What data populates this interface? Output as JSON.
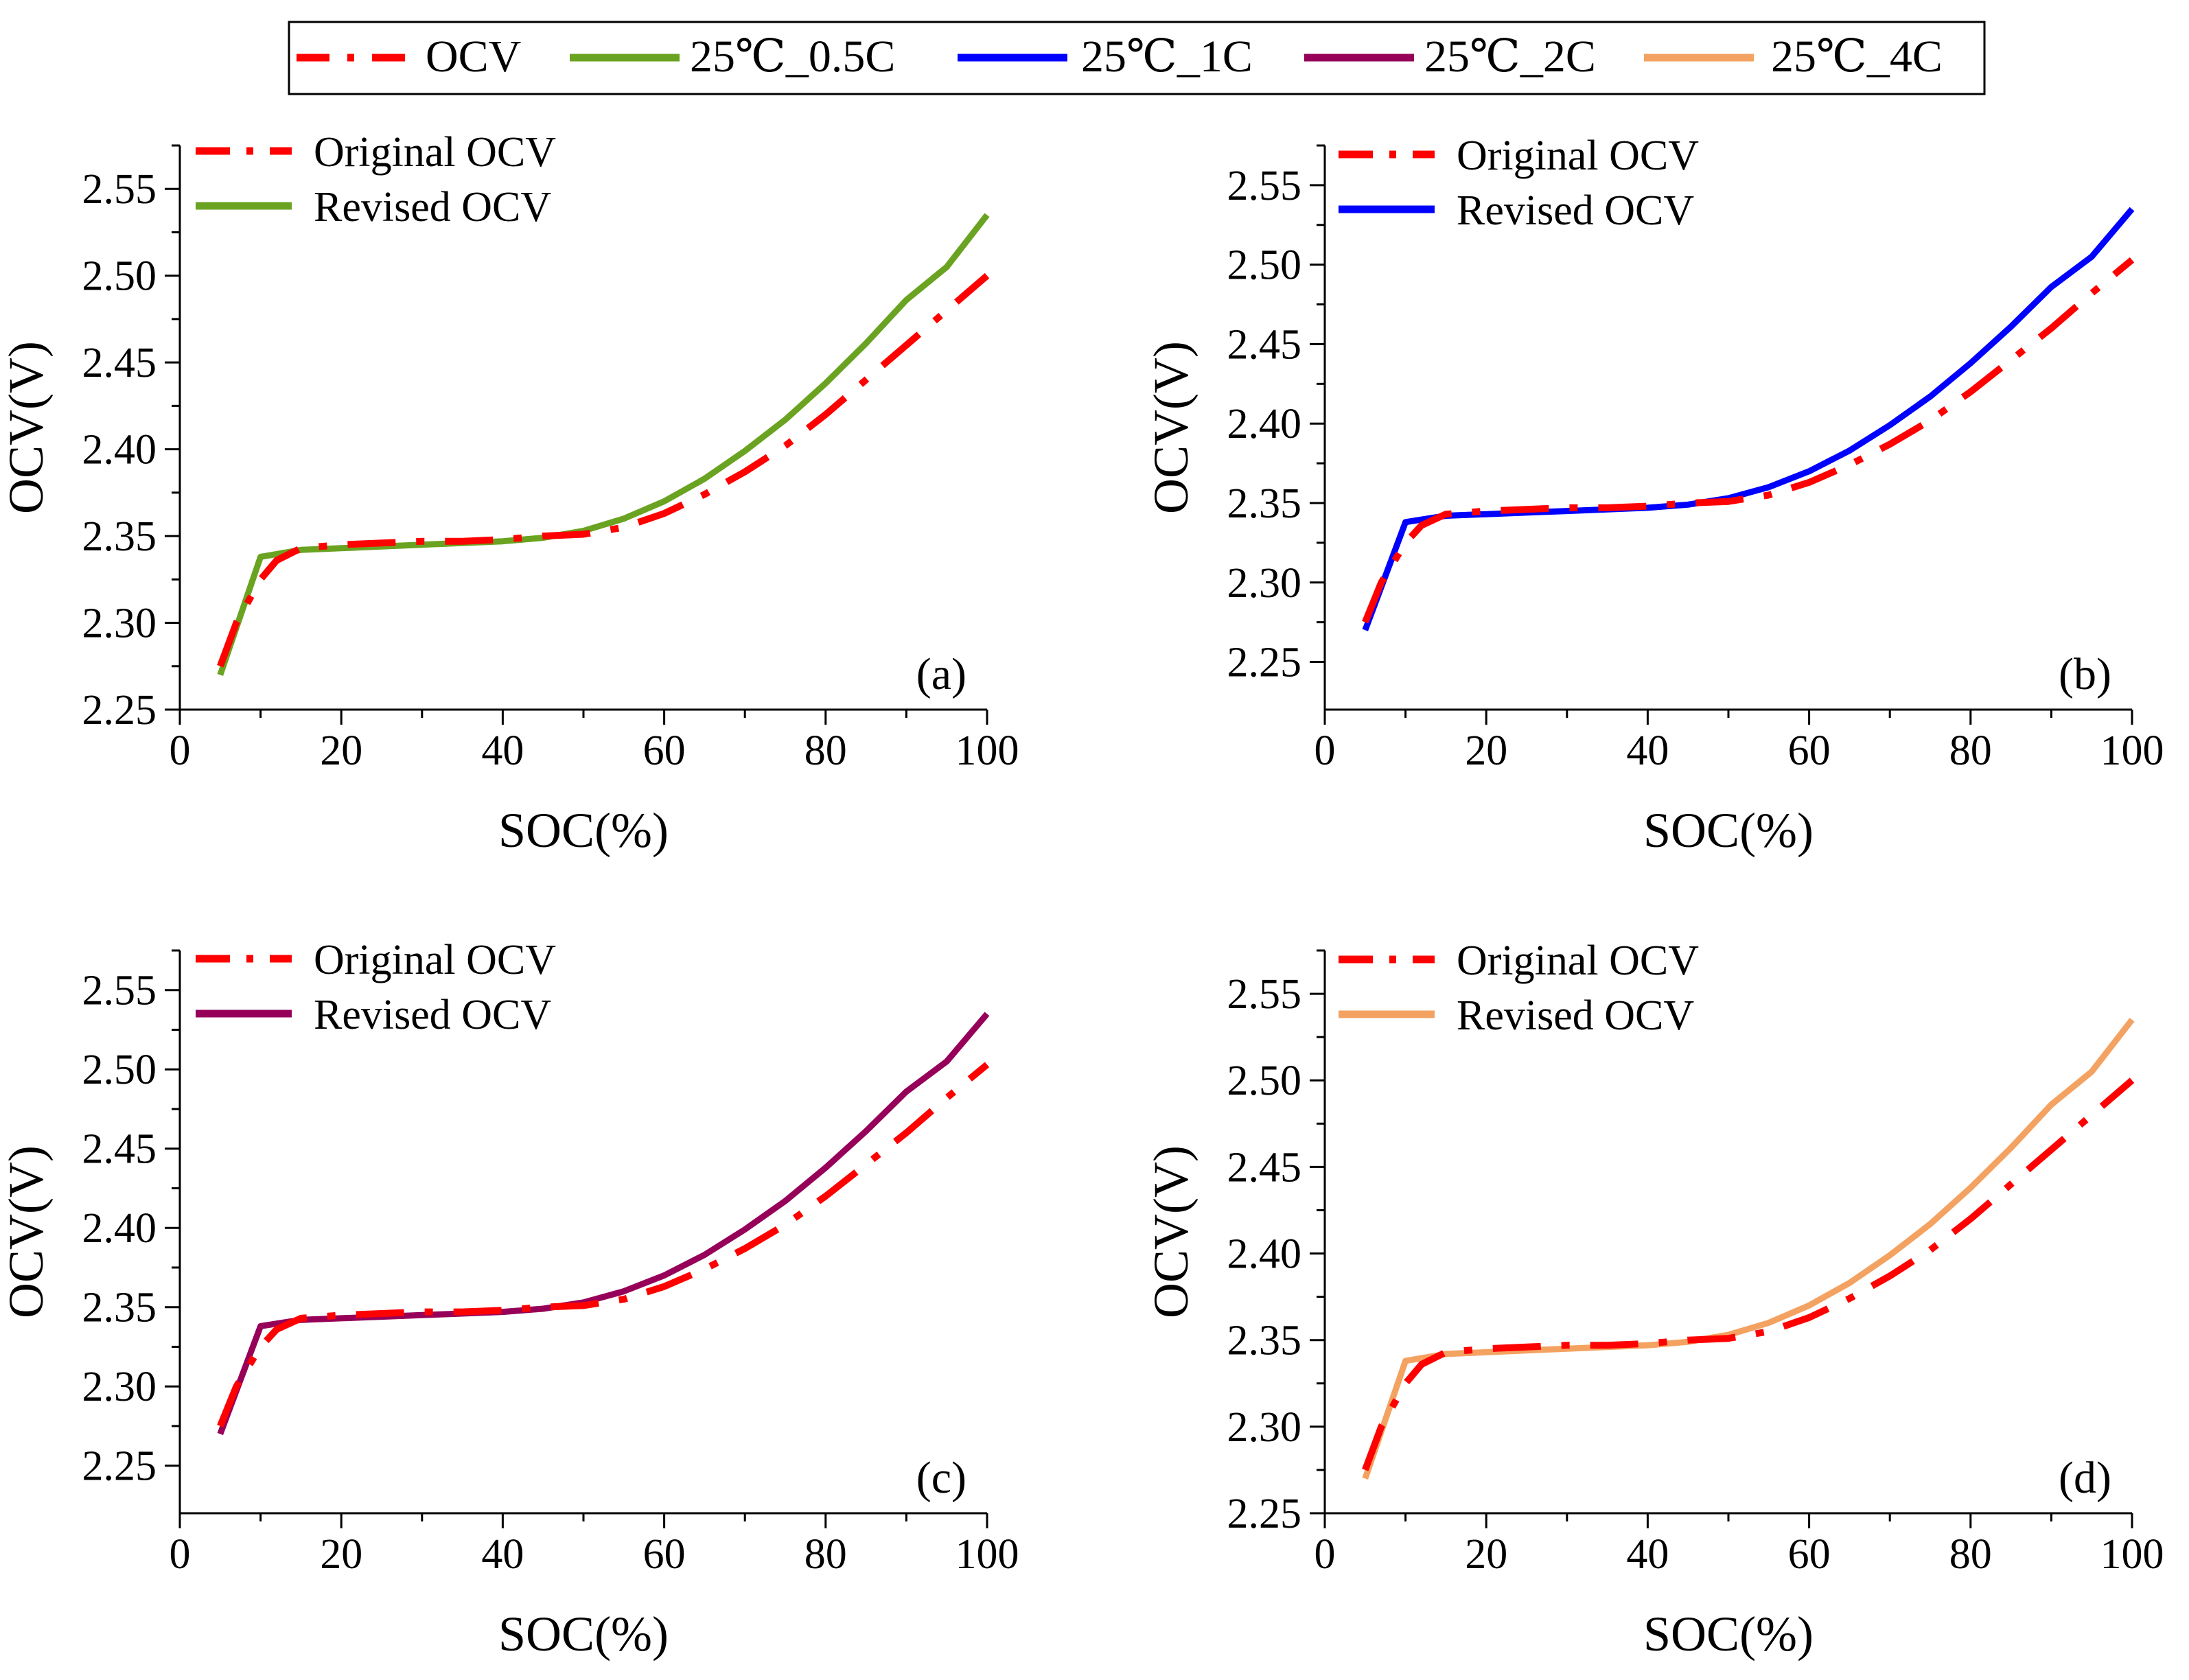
{
  "legend": {
    "entries": [
      {
        "label": "OCV",
        "color": "#ff0000",
        "style": "dashdot"
      },
      {
        "label": "25℃_0.5C",
        "color": "#6aa321",
        "style": "solid"
      },
      {
        "label": "25℃_1C",
        "color": "#0000ff",
        "style": "solid"
      },
      {
        "label": "25℃_2C",
        "color": "#960059",
        "style": "solid"
      },
      {
        "label": "25℃_4C",
        "color": "#f4a261",
        "style": "solid"
      }
    ]
  },
  "chart_data": [
    {
      "type": "line",
      "panel_label": "(a)",
      "xlabel": "SOC(%)",
      "ylabel": "OCV(V)",
      "xlim": [
        0,
        100
      ],
      "ylim": [
        2.25,
        2.575
      ],
      "xticks": [
        0,
        20,
        40,
        60,
        80,
        100
      ],
      "yticks": [
        2.25,
        2.3,
        2.35,
        2.4,
        2.45,
        2.5,
        2.55
      ],
      "legend_position": "top-left",
      "series": [
        {
          "name": "Original OCV",
          "color": "#ff0000",
          "style": "dashdot",
          "x": [
            5,
            7,
            10,
            12,
            15,
            20,
            25,
            30,
            35,
            40,
            45,
            50,
            55,
            60,
            65,
            70,
            75,
            80,
            85,
            90,
            95,
            100
          ],
          "y": [
            2.275,
            2.3,
            2.325,
            2.336,
            2.343,
            2.345,
            2.346,
            2.347,
            2.347,
            2.348,
            2.35,
            2.351,
            2.355,
            2.363,
            2.374,
            2.387,
            2.402,
            2.42,
            2.44,
            2.46,
            2.48,
            2.5
          ]
        },
        {
          "name": "Revised OCV",
          "color": "#6aa321",
          "style": "solid",
          "x": [
            5,
            10,
            15,
            20,
            25,
            30,
            35,
            40,
            45,
            50,
            55,
            60,
            65,
            70,
            75,
            80,
            85,
            90,
            95,
            100
          ],
          "y": [
            2.27,
            2.338,
            2.342,
            2.343,
            2.344,
            2.345,
            2.346,
            2.347,
            2.349,
            2.353,
            2.36,
            2.37,
            2.383,
            2.399,
            2.417,
            2.438,
            2.461,
            2.486,
            2.505,
            2.535
          ]
        }
      ]
    },
    {
      "type": "line",
      "panel_label": "(b)",
      "xlabel": "SOC(%)",
      "ylabel": "OCV(V)",
      "xlim": [
        0,
        100
      ],
      "ylim": [
        2.22,
        2.575
      ],
      "xticks": [
        0,
        20,
        40,
        60,
        80,
        100
      ],
      "yticks": [
        2.25,
        2.3,
        2.35,
        2.4,
        2.45,
        2.5,
        2.55
      ],
      "legend_position": "top-left",
      "series": [
        {
          "name": "Original OCV",
          "color": "#ff0000",
          "style": "dashdot",
          "x": [
            5,
            7,
            10,
            12,
            15,
            20,
            25,
            30,
            35,
            40,
            45,
            50,
            55,
            60,
            65,
            70,
            75,
            80,
            85,
            90,
            95,
            100
          ],
          "y": [
            2.275,
            2.3,
            2.325,
            2.336,
            2.343,
            2.345,
            2.346,
            2.347,
            2.347,
            2.348,
            2.35,
            2.351,
            2.355,
            2.363,
            2.374,
            2.387,
            2.402,
            2.42,
            2.44,
            2.46,
            2.482,
            2.503
          ]
        },
        {
          "name": "Revised OCV",
          "color": "#0000ff",
          "style": "solid",
          "x": [
            5,
            10,
            15,
            20,
            25,
            30,
            35,
            40,
            45,
            50,
            55,
            60,
            65,
            70,
            75,
            80,
            85,
            90,
            95,
            100
          ],
          "y": [
            2.27,
            2.338,
            2.342,
            2.343,
            2.344,
            2.345,
            2.346,
            2.347,
            2.349,
            2.353,
            2.36,
            2.37,
            2.383,
            2.399,
            2.417,
            2.438,
            2.461,
            2.486,
            2.505,
            2.535
          ]
        }
      ]
    },
    {
      "type": "line",
      "panel_label": "(c)",
      "xlabel": "SOC(%)",
      "ylabel": "OCV(V)",
      "xlim": [
        0,
        100
      ],
      "ylim": [
        2.22,
        2.575
      ],
      "xticks": [
        0,
        20,
        40,
        60,
        80,
        100
      ],
      "yticks": [
        2.25,
        2.3,
        2.35,
        2.4,
        2.45,
        2.5,
        2.55
      ],
      "legend_position": "top-left",
      "series": [
        {
          "name": "Original OCV",
          "color": "#ff0000",
          "style": "dashdot",
          "x": [
            5,
            7,
            10,
            12,
            15,
            20,
            25,
            30,
            35,
            40,
            45,
            50,
            55,
            60,
            65,
            70,
            75,
            80,
            85,
            90,
            95,
            100
          ],
          "y": [
            2.275,
            2.3,
            2.325,
            2.336,
            2.343,
            2.345,
            2.346,
            2.347,
            2.347,
            2.348,
            2.35,
            2.351,
            2.355,
            2.363,
            2.374,
            2.387,
            2.402,
            2.42,
            2.44,
            2.46,
            2.482,
            2.503
          ]
        },
        {
          "name": "Revised OCV",
          "color": "#960059",
          "style": "solid",
          "x": [
            5,
            10,
            15,
            20,
            25,
            30,
            35,
            40,
            45,
            50,
            55,
            60,
            65,
            70,
            75,
            80,
            85,
            90,
            95,
            100
          ],
          "y": [
            2.27,
            2.338,
            2.342,
            2.343,
            2.344,
            2.345,
            2.346,
            2.347,
            2.349,
            2.353,
            2.36,
            2.37,
            2.383,
            2.399,
            2.417,
            2.438,
            2.461,
            2.486,
            2.505,
            2.535
          ]
        }
      ]
    },
    {
      "type": "line",
      "panel_label": "(d)",
      "xlabel": "SOC(%)",
      "ylabel": "OCV(V)",
      "xlim": [
        0,
        100
      ],
      "ylim": [
        2.25,
        2.575
      ],
      "xticks": [
        0,
        20,
        40,
        60,
        80,
        100
      ],
      "yticks": [
        2.25,
        2.3,
        2.35,
        2.4,
        2.45,
        2.5,
        2.55
      ],
      "legend_position": "top-left",
      "series": [
        {
          "name": "Original OCV",
          "color": "#ff0000",
          "style": "dashdot",
          "x": [
            5,
            7,
            10,
            12,
            15,
            20,
            25,
            30,
            35,
            40,
            45,
            50,
            55,
            60,
            65,
            70,
            75,
            80,
            85,
            90,
            95,
            100
          ],
          "y": [
            2.275,
            2.3,
            2.325,
            2.336,
            2.343,
            2.345,
            2.346,
            2.347,
            2.347,
            2.348,
            2.35,
            2.351,
            2.355,
            2.363,
            2.374,
            2.387,
            2.402,
            2.42,
            2.44,
            2.46,
            2.48,
            2.5
          ]
        },
        {
          "name": "Revised OCV",
          "color": "#f4a261",
          "style": "solid",
          "x": [
            5,
            10,
            15,
            20,
            25,
            30,
            35,
            40,
            45,
            50,
            55,
            60,
            65,
            70,
            75,
            80,
            85,
            90,
            95,
            100
          ],
          "y": [
            2.27,
            2.338,
            2.342,
            2.343,
            2.344,
            2.345,
            2.346,
            2.347,
            2.349,
            2.353,
            2.36,
            2.37,
            2.383,
            2.399,
            2.417,
            2.438,
            2.461,
            2.486,
            2.505,
            2.535
          ]
        }
      ]
    }
  ]
}
